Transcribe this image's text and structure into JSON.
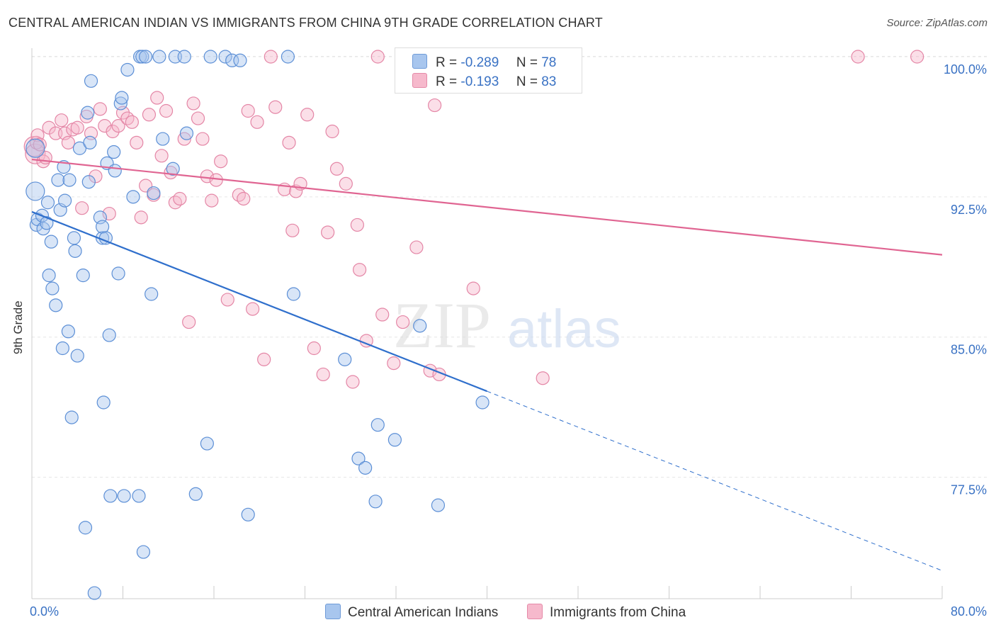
{
  "title": "CENTRAL AMERICAN INDIAN VS IMMIGRANTS FROM CHINA 9TH GRADE CORRELATION CHART",
  "source": "Source: ZipAtlas.com",
  "watermark": {
    "zip": "ZIP",
    "atlas": "atlas"
  },
  "legend": {
    "r_label": "R =",
    "n_label": "N =",
    "rows": [
      {
        "r": "-0.289",
        "n": "78",
        "color": "#a8c6ee",
        "border": "#6f9bd8"
      },
      {
        "r": "-0.193",
        "n": "83",
        "color": "#f6b9cc",
        "border": "#e58aa8"
      }
    ]
  },
  "chart_data": {
    "type": "scatter",
    "xlabel": "",
    "ylabel": "9th Grade",
    "xlim": [
      0,
      80
    ],
    "ylim": [
      71,
      101
    ],
    "x_tick_labels": [
      "0.0%",
      "80.0%"
    ],
    "y_ticks": [
      77.5,
      85.0,
      92.5,
      100.0
    ],
    "y_tick_labels": [
      "77.5%",
      "85.0%",
      "92.5%",
      "100.0%"
    ],
    "grid": true,
    "series": [
      {
        "name": "Central American Indians",
        "color": "#a8c6ee",
        "stroke": "#5c8fd6",
        "trend": {
          "x0": 0,
          "y0": 91.7,
          "x1": 40,
          "y1": 82.1,
          "dash_to_x": 80,
          "dash_to_y": 72.5,
          "color": "#2f6fcc"
        },
        "points": [
          [
            0.3,
            92.8
          ],
          [
            0.3,
            95.1
          ],
          [
            0.4,
            91.0
          ],
          [
            0.5,
            91.3
          ],
          [
            0.9,
            91.5
          ],
          [
            1.0,
            90.8
          ],
          [
            1.3,
            91.1
          ],
          [
            1.4,
            92.2
          ],
          [
            1.5,
            88.3
          ],
          [
            1.7,
            90.1
          ],
          [
            1.8,
            87.6
          ],
          [
            2.1,
            86.7
          ],
          [
            2.3,
            93.4
          ],
          [
            2.5,
            91.8
          ],
          [
            2.7,
            84.4
          ],
          [
            2.8,
            94.1
          ],
          [
            2.9,
            92.3
          ],
          [
            3.2,
            85.3
          ],
          [
            3.3,
            93.4
          ],
          [
            3.5,
            80.7
          ],
          [
            3.7,
            90.3
          ],
          [
            3.8,
            89.6
          ],
          [
            4.0,
            84.0
          ],
          [
            4.2,
            95.1
          ],
          [
            4.5,
            88.3
          ],
          [
            4.7,
            74.8
          ],
          [
            4.9,
            97.0
          ],
          [
            5.0,
            93.3
          ],
          [
            5.1,
            95.4
          ],
          [
            5.2,
            98.7
          ],
          [
            5.5,
            71.3
          ],
          [
            6.0,
            91.4
          ],
          [
            6.2,
            90.3
          ],
          [
            6.2,
            90.9
          ],
          [
            6.3,
            81.5
          ],
          [
            6.5,
            90.3
          ],
          [
            6.6,
            94.3
          ],
          [
            6.8,
            85.1
          ],
          [
            6.9,
            76.5
          ],
          [
            7.2,
            94.9
          ],
          [
            7.3,
            93.9
          ],
          [
            7.6,
            88.4
          ],
          [
            7.8,
            97.5
          ],
          [
            7.9,
            97.8
          ],
          [
            8.1,
            76.5
          ],
          [
            8.4,
            99.3
          ],
          [
            8.9,
            92.5
          ],
          [
            9.4,
            76.5
          ],
          [
            9.5,
            100.0
          ],
          [
            9.7,
            100.0
          ],
          [
            9.8,
            73.5
          ],
          [
            10.0,
            100.0
          ],
          [
            10.5,
            87.3
          ],
          [
            10.7,
            92.7
          ],
          [
            11.2,
            100.0
          ],
          [
            11.5,
            95.6
          ],
          [
            12.4,
            94.0
          ],
          [
            12.6,
            100.0
          ],
          [
            13.4,
            100.0
          ],
          [
            13.6,
            95.9
          ],
          [
            14.4,
            76.6
          ],
          [
            15.4,
            79.3
          ],
          [
            15.7,
            100.0
          ],
          [
            17.0,
            100.0
          ],
          [
            17.6,
            99.8
          ],
          [
            18.3,
            99.8
          ],
          [
            19.0,
            75.5
          ],
          [
            22.5,
            100.0
          ],
          [
            23.0,
            87.3
          ],
          [
            27.5,
            83.8
          ],
          [
            28.7,
            78.5
          ],
          [
            29.3,
            78.0
          ],
          [
            30.2,
            76.2
          ],
          [
            30.4,
            80.3
          ],
          [
            31.9,
            79.5
          ],
          [
            34.1,
            85.6
          ],
          [
            35.7,
            76.0
          ],
          [
            39.6,
            81.5
          ]
        ]
      },
      {
        "name": "Immigrants from China",
        "color": "#f6b9cc",
        "stroke": "#e486a6",
        "trend": {
          "x0": 0,
          "y0": 94.5,
          "x1": 80,
          "y1": 89.4,
          "color": "#e06592"
        },
        "points": [
          [
            0.2,
            95.2
          ],
          [
            0.3,
            94.8
          ],
          [
            0.4,
            95.4
          ],
          [
            0.5,
            95.8
          ],
          [
            0.7,
            95.3
          ],
          [
            1.0,
            94.4
          ],
          [
            1.2,
            94.6
          ],
          [
            1.5,
            96.2
          ],
          [
            2.1,
            95.9
          ],
          [
            2.6,
            96.6
          ],
          [
            2.9,
            95.9
          ],
          [
            3.2,
            95.4
          ],
          [
            3.6,
            96.1
          ],
          [
            4.0,
            96.2
          ],
          [
            4.4,
            91.9
          ],
          [
            4.8,
            96.8
          ],
          [
            5.2,
            95.9
          ],
          [
            5.6,
            93.6
          ],
          [
            6.0,
            97.2
          ],
          [
            6.4,
            96.3
          ],
          [
            6.8,
            91.6
          ],
          [
            7.1,
            96.0
          ],
          [
            7.6,
            96.3
          ],
          [
            8.0,
            97.0
          ],
          [
            8.4,
            96.7
          ],
          [
            8.8,
            96.5
          ],
          [
            9.2,
            95.4
          ],
          [
            9.6,
            91.4
          ],
          [
            10.0,
            93.1
          ],
          [
            10.3,
            96.9
          ],
          [
            10.7,
            92.6
          ],
          [
            11.0,
            97.8
          ],
          [
            11.4,
            94.7
          ],
          [
            11.8,
            97.1
          ],
          [
            12.2,
            93.8
          ],
          [
            12.6,
            92.2
          ],
          [
            13.0,
            92.4
          ],
          [
            13.4,
            95.6
          ],
          [
            13.8,
            85.8
          ],
          [
            14.2,
            97.5
          ],
          [
            14.6,
            96.7
          ],
          [
            15.0,
            95.6
          ],
          [
            15.4,
            93.6
          ],
          [
            15.8,
            92.3
          ],
          [
            16.2,
            93.4
          ],
          [
            16.6,
            94.4
          ],
          [
            17.2,
            87.0
          ],
          [
            18.2,
            92.6
          ],
          [
            18.6,
            92.4
          ],
          [
            19.0,
            97.1
          ],
          [
            19.4,
            86.5
          ],
          [
            19.8,
            96.5
          ],
          [
            20.4,
            83.8
          ],
          [
            21.0,
            100.0
          ],
          [
            21.4,
            97.3
          ],
          [
            22.2,
            92.9
          ],
          [
            22.6,
            95.4
          ],
          [
            22.9,
            90.7
          ],
          [
            23.2,
            92.8
          ],
          [
            23.6,
            93.2
          ],
          [
            24.2,
            96.9
          ],
          [
            24.8,
            84.4
          ],
          [
            25.6,
            83.0
          ],
          [
            26.0,
            90.6
          ],
          [
            26.4,
            96.0
          ],
          [
            26.8,
            94.0
          ],
          [
            27.6,
            93.2
          ],
          [
            28.2,
            82.6
          ],
          [
            28.6,
            91.0
          ],
          [
            28.8,
            88.6
          ],
          [
            29.4,
            84.8
          ],
          [
            30.4,
            100.0
          ],
          [
            30.8,
            86.2
          ],
          [
            31.8,
            83.6
          ],
          [
            32.6,
            85.8
          ],
          [
            33.8,
            89.8
          ],
          [
            35.0,
            83.2
          ],
          [
            35.4,
            97.4
          ],
          [
            35.8,
            83.0
          ],
          [
            38.8,
            87.6
          ],
          [
            44.9,
            82.8
          ],
          [
            72.6,
            100.0
          ],
          [
            77.8,
            100.0
          ]
        ]
      }
    ]
  },
  "bottom_legend": [
    "Central American Indians",
    "Immigrants from China"
  ]
}
